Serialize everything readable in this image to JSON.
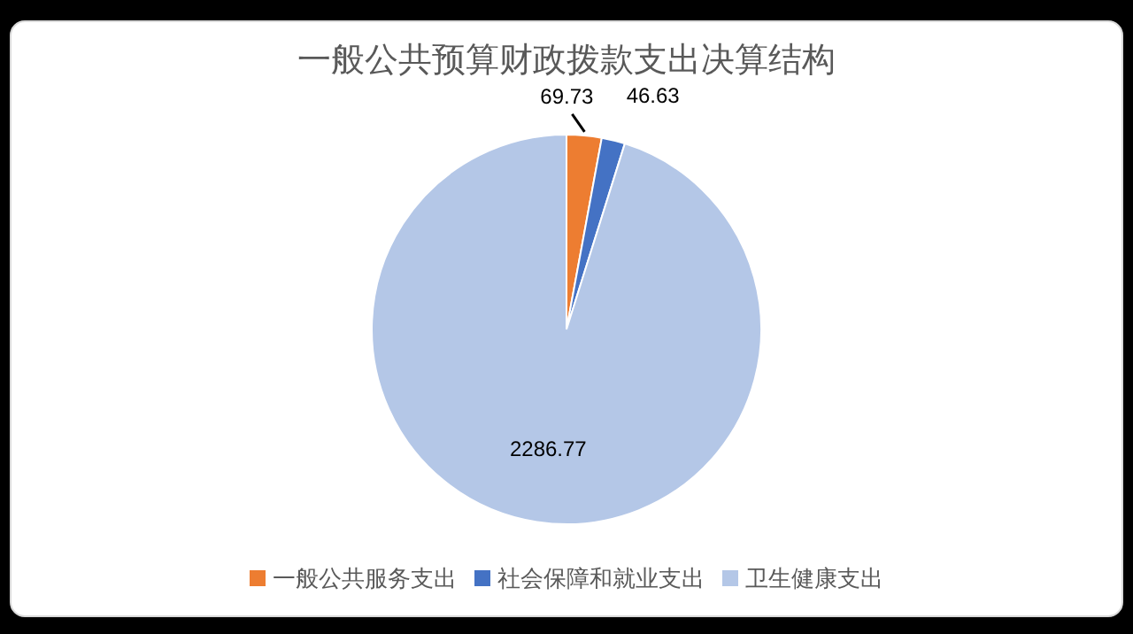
{
  "chart_data": {
    "type": "pie",
    "title": "一般公共预算财政拨款支出决算结构",
    "categories": [
      "一般公共服务支出",
      "社会保障和就业支出",
      "卫生健康支出"
    ],
    "values": [
      69.73,
      46.63,
      2286.77
    ],
    "colors": [
      "#ed7d31",
      "#4472c4",
      "#b4c7e7"
    ],
    "data_labels": true,
    "legend": "bottom"
  }
}
